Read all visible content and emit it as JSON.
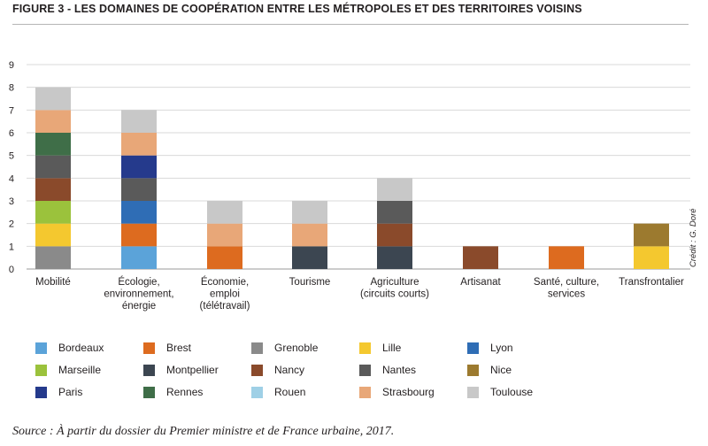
{
  "figure": {
    "title": "FIGURE 3 - LES DOMAINES DE COOPÉRATION ENTRE LES MÉTROPOLES ET DES TERRITOIRES VOISINS",
    "credit": "Crédit : G. Doré",
    "source": "Source : À partir du dossier du Premier ministre et de France urbaine, 2017."
  },
  "chart_data": {
    "type": "bar",
    "stacked": true,
    "ylim": [
      0,
      9
    ],
    "yticks": [
      0,
      1,
      2,
      3,
      4,
      5,
      6,
      7,
      8,
      9
    ],
    "grid": true,
    "legend_position": "bottom",
    "categories": [
      [
        "Mobilité"
      ],
      [
        "Écologie,",
        "environnement,",
        "énergie"
      ],
      [
        "Économie,",
        "emploi",
        "(télétravail)"
      ],
      [
        "Tourisme"
      ],
      [
        "Agriculture",
        "(circuits courts)"
      ],
      [
        "Artisanat"
      ],
      [
        "Santé, culture,",
        "services"
      ],
      [
        "Transfrontalier"
      ]
    ],
    "series": [
      {
        "name": "Bordeaux",
        "color": "#5ba3d9",
        "values": [
          0,
          1,
          0,
          0,
          0,
          0,
          0,
          0
        ]
      },
      {
        "name": "Brest",
        "color": "#dd6b1f",
        "values": [
          0,
          1,
          1,
          0,
          0,
          0,
          1,
          0
        ]
      },
      {
        "name": "Grenoble",
        "color": "#8a8a8a",
        "values": [
          1,
          0,
          0,
          0,
          0,
          0,
          0,
          0
        ]
      },
      {
        "name": "Lille",
        "color": "#f4c82f",
        "values": [
          1,
          0,
          0,
          0,
          0,
          0,
          0,
          1
        ]
      },
      {
        "name": "Lyon",
        "color": "#2f6db5",
        "values": [
          0,
          1,
          0,
          0,
          0,
          0,
          0,
          0
        ]
      },
      {
        "name": "Marseille",
        "color": "#9bc23c",
        "values": [
          1,
          0,
          0,
          0,
          0,
          0,
          0,
          0
        ]
      },
      {
        "name": "Montpellier",
        "color": "#3c4651",
        "values": [
          0,
          0,
          0,
          1,
          1,
          0,
          0,
          0
        ]
      },
      {
        "name": "Nancy",
        "color": "#8a4a2b",
        "values": [
          1,
          0,
          0,
          0,
          1,
          1,
          0,
          0
        ]
      },
      {
        "name": "Nantes",
        "color": "#5a5a5a",
        "values": [
          1,
          1,
          0,
          0,
          1,
          0,
          0,
          0
        ]
      },
      {
        "name": "Nice",
        "color": "#9c7a2f",
        "values": [
          0,
          0,
          0,
          0,
          0,
          0,
          0,
          1
        ]
      },
      {
        "name": "Paris",
        "color": "#253a8c",
        "values": [
          0,
          1,
          0,
          0,
          0,
          0,
          0,
          0
        ]
      },
      {
        "name": "Rennes",
        "color": "#3f6e48",
        "values": [
          1,
          0,
          0,
          0,
          0,
          0,
          0,
          0
        ]
      },
      {
        "name": "Rouen",
        "color": "#9fd0e6",
        "values": [
          0,
          0,
          0,
          0,
          0,
          0,
          0,
          0
        ]
      },
      {
        "name": "Strasbourg",
        "color": "#e8a778",
        "values": [
          1,
          1,
          1,
          1,
          0,
          0,
          0,
          0
        ]
      },
      {
        "name": "Toulouse",
        "color": "#c8c8c8",
        "values": [
          1,
          1,
          1,
          1,
          1,
          0,
          0,
          0
        ]
      }
    ],
    "stack_order": [
      [
        "Grenoble",
        "Lille",
        "Marseille",
        "Nancy",
        "Nantes",
        "Rennes",
        "Strasbourg",
        "Toulouse"
      ],
      [
        "Bordeaux",
        "Brest",
        "Lyon",
        "Nantes",
        "Paris",
        "Strasbourg",
        "Toulouse"
      ],
      [
        "Brest",
        "Strasbourg",
        "Toulouse"
      ],
      [
        "Montpellier",
        "Strasbourg",
        "Toulouse"
      ],
      [
        "Montpellier",
        "Nancy",
        "Nantes",
        "Toulouse"
      ],
      [
        "Nancy"
      ],
      [
        "Brest"
      ],
      [
        "Lille",
        "Nice"
      ]
    ]
  }
}
